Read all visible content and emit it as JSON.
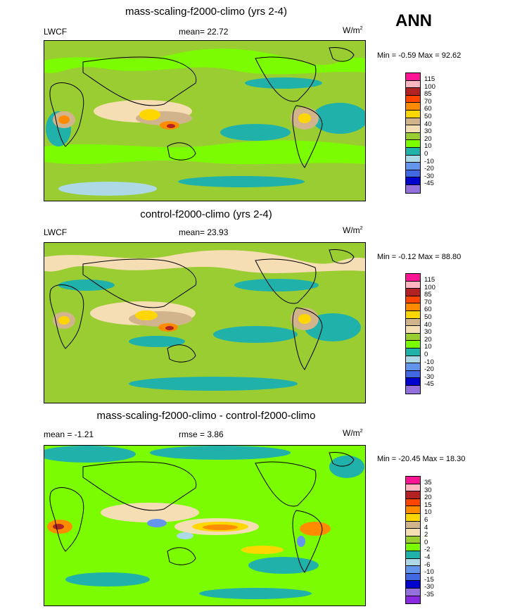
{
  "season": "ANN",
  "panels": [
    {
      "title": "mass-scaling-f2000-climo (yrs 2-4)",
      "left_label": "LWCF",
      "center_label": "mean=  22.72",
      "units_base": "W/m",
      "units_sup": "2",
      "minmax": "Min =  -0.59 Max =   92.62",
      "colorbar_labels": [
        "115",
        "100",
        "85",
        "70",
        "60",
        "50",
        "40",
        "30",
        "20",
        "10",
        "0",
        "-10",
        "-20",
        "-30",
        "-45"
      ]
    },
    {
      "title": "control-f2000-climo (yrs 2-4)",
      "left_label": "LWCF",
      "center_label": "mean=  23.93",
      "units_base": "W/m",
      "units_sup": "2",
      "minmax": "Min =  -0.12 Max =  88.80",
      "colorbar_labels": [
        "115",
        "100",
        "85",
        "70",
        "60",
        "50",
        "40",
        "30",
        "20",
        "10",
        "0",
        "-10",
        "-20",
        "-30",
        "-45"
      ]
    },
    {
      "title": "mass-scaling-f2000-climo - control-f2000-climo",
      "left_label": "mean =  -1.21",
      "center_label": "rmse =   3.86",
      "units_base": "W/m",
      "units_sup": "2",
      "minmax": "Min = -20.45 Max =  18.30",
      "colorbar_labels": [
        "35",
        "30",
        "20",
        "15",
        "10",
        "6",
        "4",
        "2",
        "0",
        "-2",
        "-4",
        "-6",
        "-10",
        "-15",
        "-30",
        "-35"
      ]
    }
  ],
  "colors": {
    "abs_scale": [
      "#ff1493",
      "#ffb6c1",
      "#b22222",
      "#ff4500",
      "#ff8c00",
      "#ffd700",
      "#d2b48c",
      "#f5deb3",
      "#9acd32",
      "#7cfc00",
      "#20b2aa",
      "#add8e6",
      "#6495ed",
      "#4169e1",
      "#0000cd",
      "#9370db"
    ],
    "diff_scale": [
      "#ff1493",
      "#ffb6c1",
      "#b22222",
      "#ff4500",
      "#ff8c00",
      "#ffd700",
      "#d2b48c",
      "#f5deb3",
      "#9acd32",
      "#7cfc00",
      "#20b2aa",
      "#add8e6",
      "#6495ed",
      "#4169e1",
      "#0000cd",
      "#9370db",
      "#8a2be2"
    ]
  }
}
